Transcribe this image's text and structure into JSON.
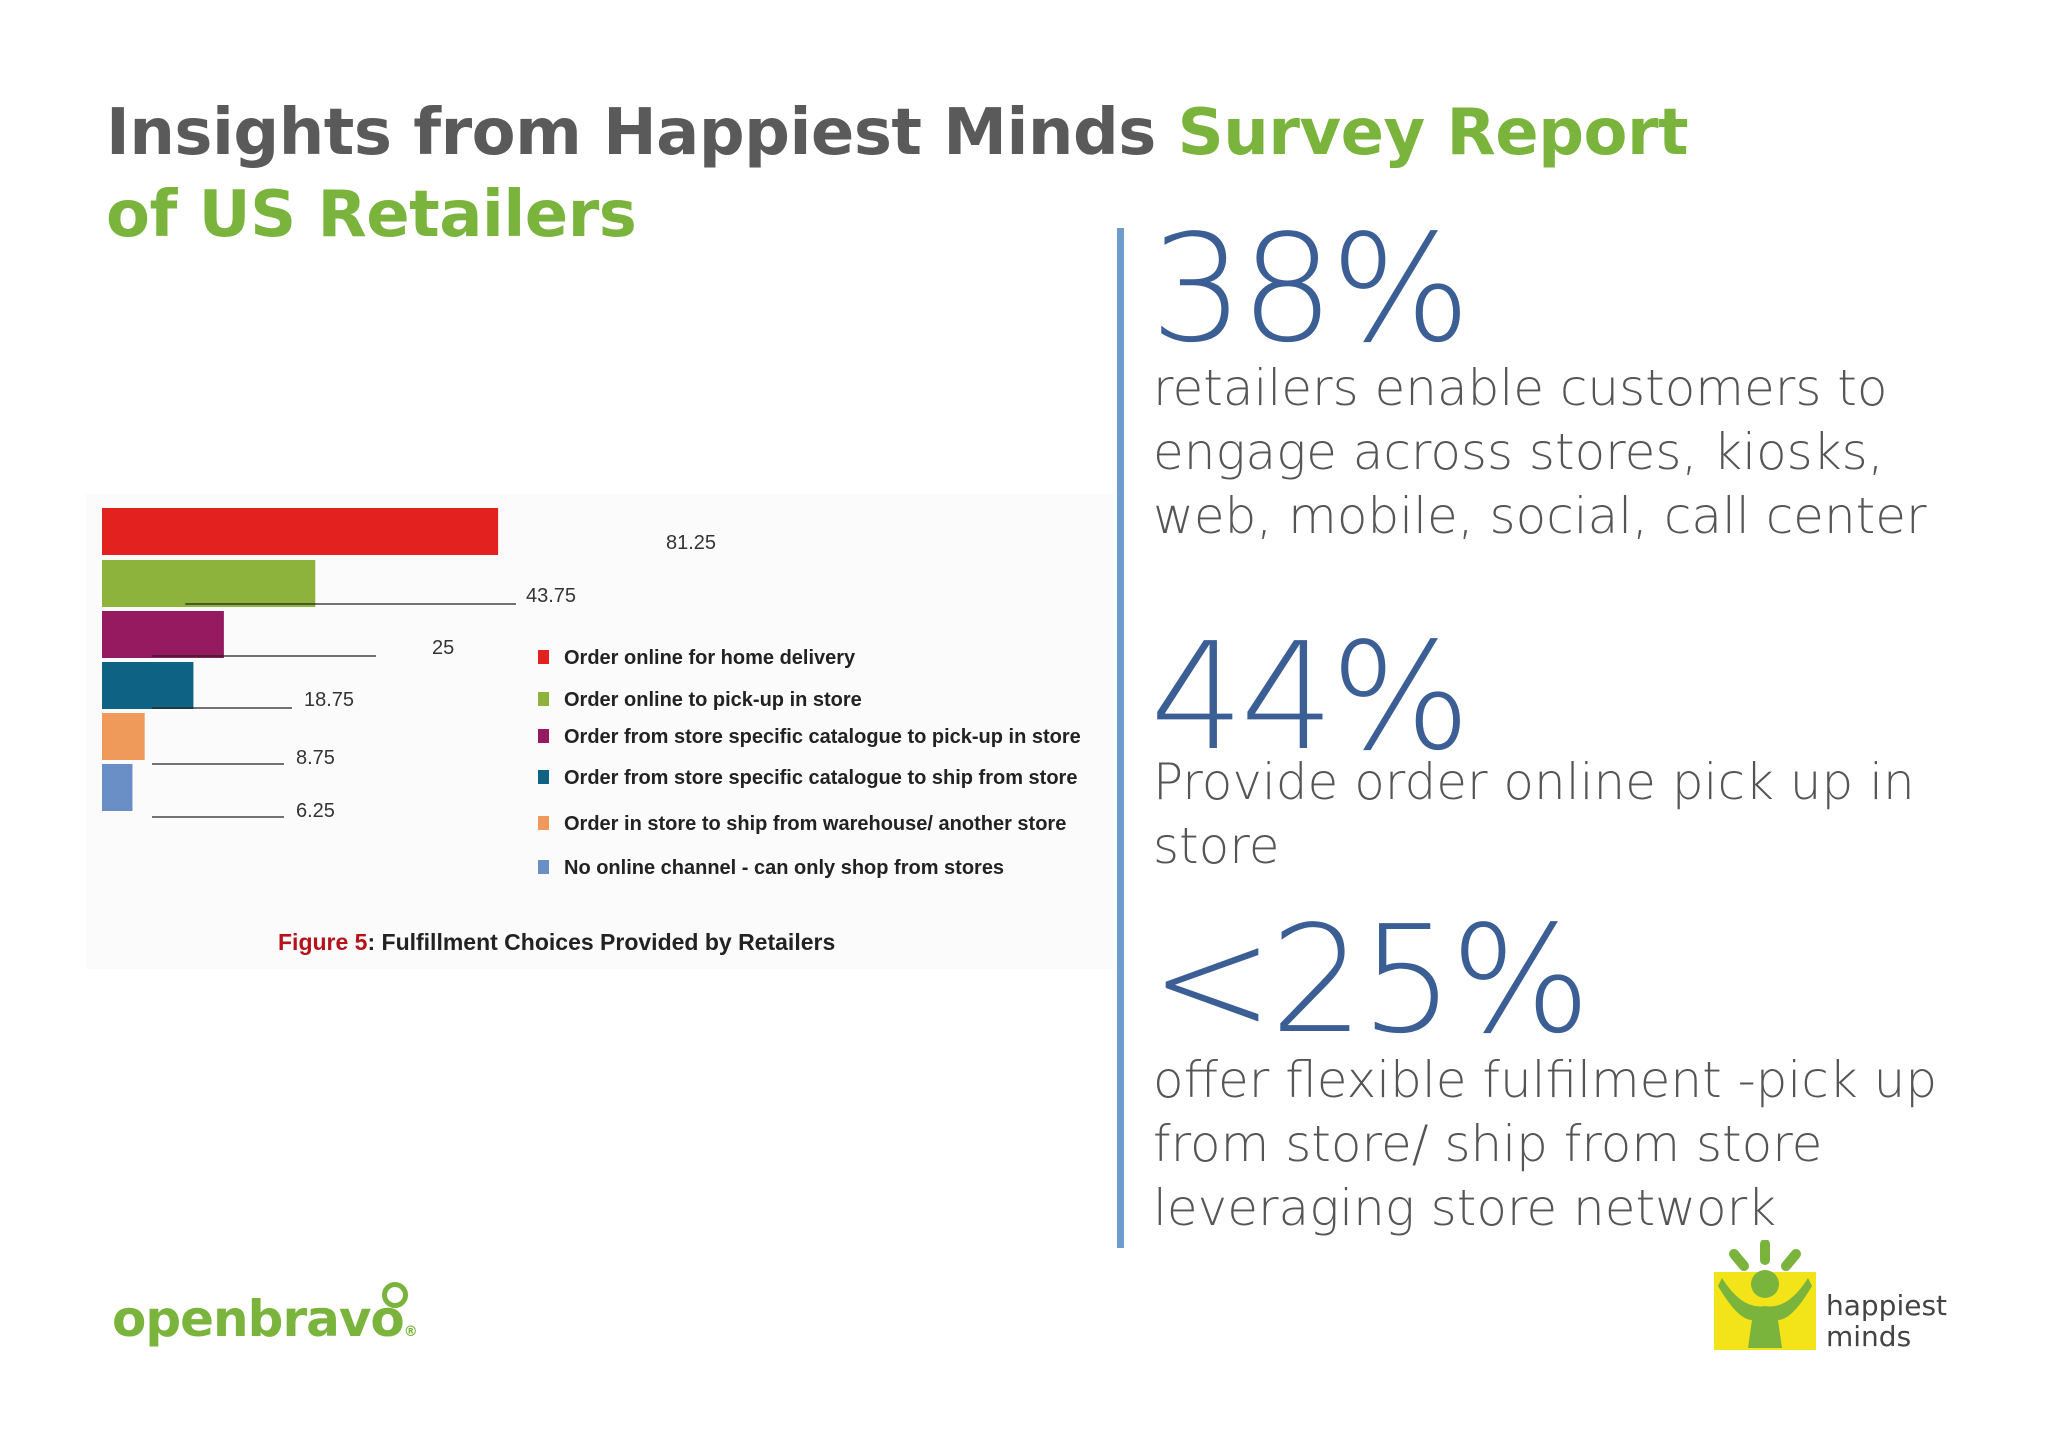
{
  "title": {
    "part1": "Insights from Happiest Minds ",
    "part2": "Survey Report of US Retailers"
  },
  "chart_data": {
    "type": "bar",
    "orientation": "horizontal",
    "categories": [
      "Order online for home delivery",
      "Order online to pick-up in store",
      "Order from store specific catalogue to pick-up in store",
      "Order from store specific catalogue to ship from store",
      "Order in store to ship from warehouse/ another store",
      "No online channel - can only shop from stores"
    ],
    "values": [
      81.25,
      43.75,
      25,
      18.75,
      8.75,
      6.25
    ],
    "value_labels": [
      "81.25",
      "43.75",
      "25",
      "18.75",
      "8.75",
      "6.25"
    ],
    "colors": [
      "#e3211f",
      "#8db33c",
      "#951a5f",
      "#0e6283",
      "#ef9a5a",
      "#6a8fc7"
    ],
    "xlim": [
      0,
      100
    ],
    "legend_position": "right",
    "caption_prefix": "Figure 5",
    "caption_text": ": Fulfillment Choices Provided by Retailers",
    "caption_prefix_color": "#b5121b"
  },
  "stats": [
    {
      "number": "38%",
      "text": "retailers enable customers to engage across stores, kiosks, web, mobile, social, call center"
    },
    {
      "number": "44%",
      "text": "Provide order online pick up in store"
    },
    {
      "number": "<25%",
      "text": "offer flexible fulfilment -pick up from store/ ship from store leveraging store network"
    }
  ],
  "logos": {
    "openbravo": "openbravo",
    "happiest_minds_line1": "happiest",
    "happiest_minds_line2": "minds"
  }
}
